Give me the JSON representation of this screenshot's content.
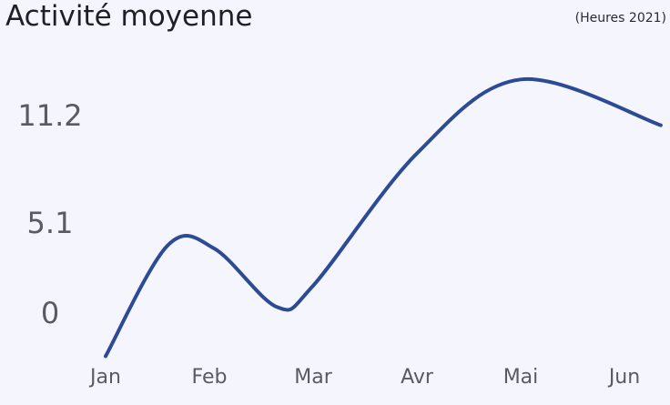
{
  "chart_data": {
    "type": "line",
    "title": "Activité moyenne",
    "subtitle": "(Heures 2021)",
    "categories": [
      "Jan",
      "Feb",
      "Mar",
      "Avr",
      "Mai",
      "Jun"
    ],
    "yticks": [
      "11.2",
      "5.1",
      "0"
    ],
    "ytick_values": [
      11.2,
      5.1,
      0
    ],
    "series": [
      {
        "color": "#2d4a94",
        "x": [
          "Jan",
          "Feb",
          "Feb",
          "Mar",
          "Mar",
          "Avr",
          "Mai",
          "Jun"
        ],
        "x_pos": [
          0,
          0.6,
          1.05,
          1.65,
          2.0,
          3.0,
          4.0,
          5.35
        ],
        "values": [
          -2.5,
          3.8,
          3.6,
          0.3,
          1.5,
          9.0,
          13.2,
          10.6
        ]
      }
    ],
    "ylim": [
      -2.5,
      14.5
    ],
    "grid": false
  }
}
